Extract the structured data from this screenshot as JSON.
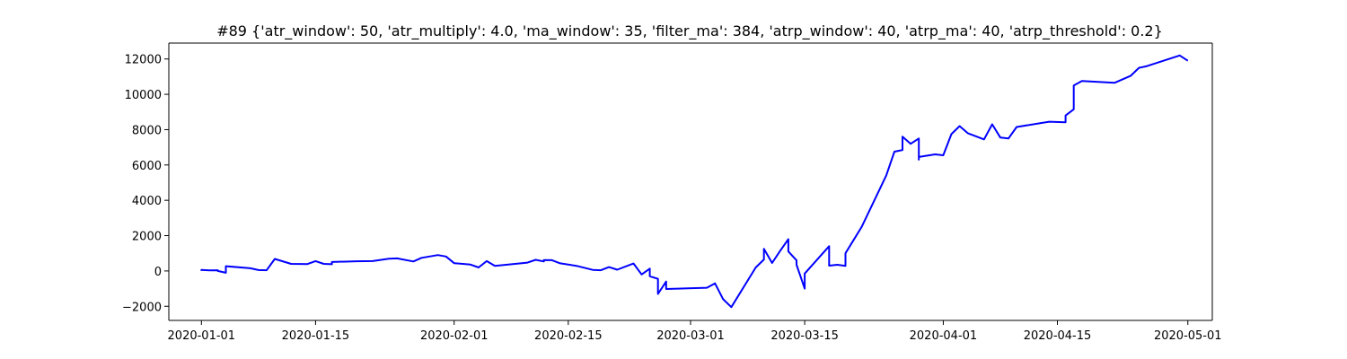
{
  "chart_data": {
    "type": "line",
    "title": "#89 {'atr_window': 50, 'atr_multiply': 4.0, 'ma_window': 35, 'filter_ma': 384, 'atrp_window': 40, 'atrp_ma': 40, 'atrp_threshold': 0.2}",
    "xlabel": "",
    "ylabel": "",
    "x_axis_type": "date",
    "xlim": [
      "2019-12-28",
      "2020-05-04"
    ],
    "ylim": [
      -2800,
      12900
    ],
    "x_ticks": [
      "2020-01-01",
      "2020-01-15",
      "2020-02-01",
      "2020-02-15",
      "2020-03-01",
      "2020-03-15",
      "2020-04-01",
      "2020-04-15",
      "2020-05-01"
    ],
    "y_ticks": [
      -2000,
      0,
      2000,
      4000,
      6000,
      8000,
      10000,
      12000
    ],
    "grid": false,
    "line_color": "#0000ff",
    "series": [
      {
        "points": [
          [
            "2020-01-01",
            0
          ],
          [
            "2020-01-01",
            60
          ],
          [
            "2020-01-02",
            30
          ],
          [
            "2020-01-03",
            40
          ],
          [
            "2020-01-03",
            0
          ],
          [
            "2020-01-04",
            -100
          ],
          [
            "2020-01-04",
            270
          ],
          [
            "2020-01-07",
            150
          ],
          [
            "2020-01-08",
            50
          ],
          [
            "2020-01-09",
            40
          ],
          [
            "2020-01-10",
            680
          ],
          [
            "2020-01-12",
            400
          ],
          [
            "2020-01-14",
            390
          ],
          [
            "2020-01-15",
            560
          ],
          [
            "2020-01-16",
            400
          ],
          [
            "2020-01-17",
            380
          ],
          [
            "2020-01-17",
            510
          ],
          [
            "2020-01-20",
            550
          ],
          [
            "2020-01-22",
            560
          ],
          [
            "2020-01-24",
            690
          ],
          [
            "2020-01-25",
            710
          ],
          [
            "2020-01-27",
            540
          ],
          [
            "2020-01-28",
            740
          ],
          [
            "2020-01-30",
            900
          ],
          [
            "2020-01-31",
            820
          ],
          [
            "2020-02-01",
            440
          ],
          [
            "2020-02-03",
            360
          ],
          [
            "2020-02-04",
            200
          ],
          [
            "2020-02-05",
            560
          ],
          [
            "2020-02-06",
            290
          ],
          [
            "2020-02-10",
            470
          ],
          [
            "2020-02-11",
            630
          ],
          [
            "2020-02-12",
            540
          ],
          [
            "2020-02-12",
            620
          ],
          [
            "2020-02-13",
            610
          ],
          [
            "2020-02-14",
            430
          ],
          [
            "2020-02-16",
            290
          ],
          [
            "2020-02-18",
            60
          ],
          [
            "2020-02-19",
            40
          ],
          [
            "2020-02-20",
            220
          ],
          [
            "2020-02-21",
            70
          ],
          [
            "2020-02-23",
            420
          ],
          [
            "2020-02-24",
            -200
          ],
          [
            "2020-02-25",
            130
          ],
          [
            "2020-02-25",
            -300
          ],
          [
            "2020-02-26",
            -450
          ],
          [
            "2020-02-26",
            -1300
          ],
          [
            "2020-02-27",
            -600
          ],
          [
            "2020-02-27",
            -1020
          ],
          [
            "2020-03-03",
            -950
          ],
          [
            "2020-03-04",
            -700
          ],
          [
            "2020-03-05",
            -1600
          ],
          [
            "2020-03-06",
            -2050
          ],
          [
            "2020-03-09",
            200
          ],
          [
            "2020-03-10",
            650
          ],
          [
            "2020-03-10",
            1250
          ],
          [
            "2020-03-11",
            450
          ],
          [
            "2020-03-12",
            1150
          ],
          [
            "2020-03-13",
            1800
          ],
          [
            "2020-03-13",
            1100
          ],
          [
            "2020-03-14",
            600
          ],
          [
            "2020-03-14",
            350
          ],
          [
            "2020-03-15",
            -1000
          ],
          [
            "2020-03-15",
            -150
          ],
          [
            "2020-03-18",
            1400
          ],
          [
            "2020-03-18",
            300
          ],
          [
            "2020-03-19",
            350
          ],
          [
            "2020-03-20",
            290
          ],
          [
            "2020-03-20",
            1000
          ],
          [
            "2020-03-22",
            2500
          ],
          [
            "2020-03-25",
            5400
          ],
          [
            "2020-03-26",
            6750
          ],
          [
            "2020-03-27",
            6850
          ],
          [
            "2020-03-27",
            7600
          ],
          [
            "2020-03-28",
            7200
          ],
          [
            "2020-03-29",
            7500
          ],
          [
            "2020-03-29",
            6300
          ],
          [
            "2020-03-29",
            6450
          ],
          [
            "2020-03-31",
            6600
          ],
          [
            "2020-04-01",
            6550
          ],
          [
            "2020-04-02",
            7750
          ],
          [
            "2020-04-03",
            8200
          ],
          [
            "2020-04-04",
            7800
          ],
          [
            "2020-04-06",
            7450
          ],
          [
            "2020-04-07",
            8300
          ],
          [
            "2020-04-08",
            7550
          ],
          [
            "2020-04-09",
            7500
          ],
          [
            "2020-04-10",
            8150
          ],
          [
            "2020-04-14",
            8450
          ],
          [
            "2020-04-16",
            8420
          ],
          [
            "2020-04-16",
            8800
          ],
          [
            "2020-04-17",
            9150
          ],
          [
            "2020-04-17",
            10500
          ],
          [
            "2020-04-18",
            10750
          ],
          [
            "2020-04-22",
            10650
          ],
          [
            "2020-04-24",
            11050
          ],
          [
            "2020-04-25",
            11500
          ],
          [
            "2020-04-26",
            11600
          ],
          [
            "2020-04-30",
            12200
          ],
          [
            "2020-05-01",
            11900
          ]
        ]
      }
    ]
  }
}
